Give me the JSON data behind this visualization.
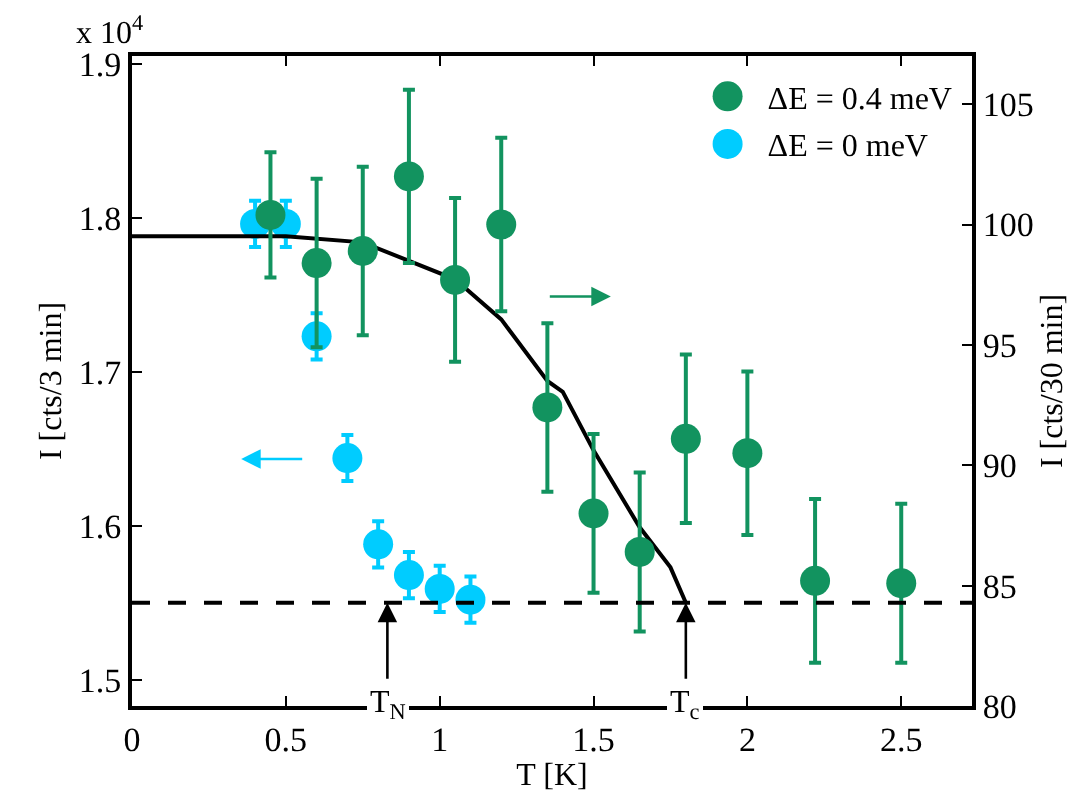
{
  "chart_data": {
    "type": "scatter",
    "xlabel": "T [K]",
    "ylabel": "I [cts/3 min]",
    "y2label": "I [cts/30 min]",
    "xlim": [
      0,
      2.73
    ],
    "xticks": [
      0,
      0.5,
      1,
      1.5,
      2,
      2.5
    ],
    "ylim": [
      1.483,
      1.905
    ],
    "yticks": [
      1.5,
      1.6,
      1.7,
      1.8,
      1.9
    ],
    "y2lim": [
      80,
      107.0
    ],
    "y2ticks": [
      80,
      85,
      90,
      95,
      100,
      105
    ],
    "legend": "top right",
    "series": [
      {
        "name": "ΔE = 0.4 meV",
        "color": "#12935f",
        "axis": "y2",
        "marker": "circle",
        "x": [
          0.45,
          0.6,
          0.75,
          0.9,
          1.05,
          1.2,
          1.35,
          1.5,
          1.65,
          1.8,
          2.0,
          2.22,
          2.5
        ],
        "values": [
          100.4,
          98.4,
          98.9,
          102.0,
          97.7,
          100.0,
          92.4,
          88.0,
          86.4,
          91.1,
          90.5,
          85.2,
          85.1
        ],
        "errors": [
          2.6,
          3.5,
          3.5,
          3.6,
          3.4,
          3.6,
          3.5,
          3.3,
          3.3,
          3.5,
          3.4,
          3.4,
          3.3
        ]
      },
      {
        "name": "ΔE = 0 meV",
        "color": "#00ccff",
        "axis": "y",
        "marker": "circle",
        "x": [
          0.4,
          0.5,
          0.6,
          0.7,
          0.8,
          0.9,
          1.0,
          1.1
        ],
        "values": [
          1.796,
          1.796,
          1.723,
          1.644,
          1.588,
          1.568,
          1.559,
          1.552
        ],
        "errors": [
          0.015,
          0.015,
          0.015,
          0.015,
          0.015,
          0.015,
          0.015,
          0.015
        ]
      },
      {
        "type": "line",
        "color": "#000000",
        "axis": "y",
        "marker": "none",
        "x": [
          0,
          0.5,
          0.75,
          1.05,
          1.2,
          1.35,
          1.4,
          1.5,
          1.65,
          1.75,
          1.8
        ],
        "values": [
          1.788,
          1.788,
          1.784,
          1.76,
          1.734,
          1.694,
          1.687,
          1.649,
          1.599,
          1.573,
          1.55
        ]
      }
    ],
    "ref_lines": [
      {
        "axis": "y",
        "value": 1.55,
        "color": "#000000",
        "line_style": "dashed"
      }
    ],
    "annotations": [
      "x 10$^{4}$",
      {
        "text": "T$_{N}$",
        "x": 0.83,
        "y": 1.55
      },
      {
        "text": "T$_{c}$",
        "x": 1.8,
        "y": 1.55
      }
    ]
  }
}
